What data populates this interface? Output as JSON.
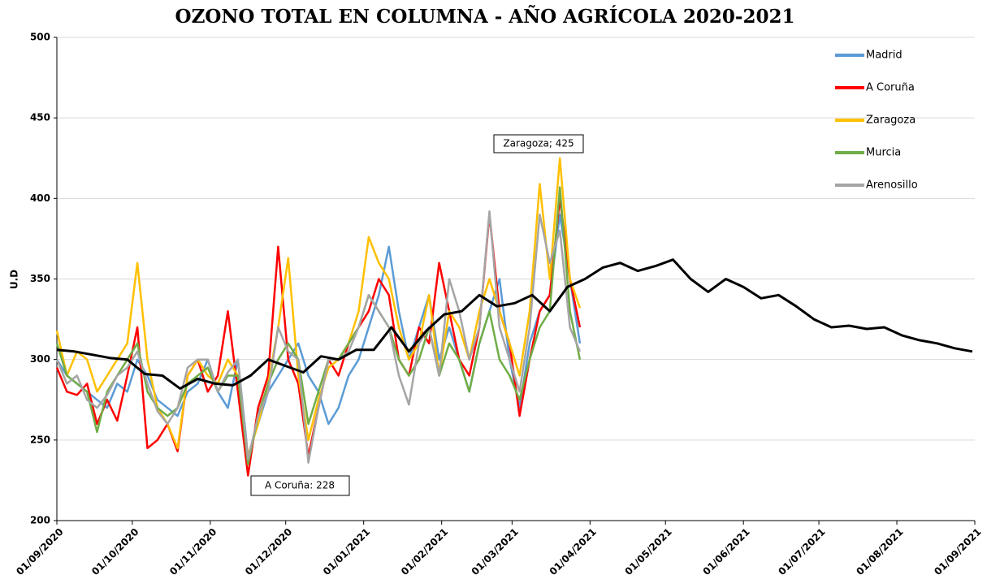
{
  "chart_data": {
    "type": "line",
    "title": "OZONO TOTAL EN COLUMNA - AÑO AGRÍCOLA 2020-2021",
    "y_label": "U.D",
    "ylim": [
      200,
      500
    ],
    "yticks": [
      200,
      250,
      300,
      350,
      400,
      450,
      500
    ],
    "grid": true,
    "xlim": [
      "01/09/2020",
      "01/09/2021"
    ],
    "xticks": [
      "01/09/2020",
      "01/10/2020",
      "01/11/2020",
      "01/12/2020",
      "01/01/2021",
      "01/02/2021",
      "01/03/2021",
      "01/04/2021",
      "01/05/2021",
      "01/06/2021",
      "01/07/2021",
      "01/08/2021",
      "01/09/2021"
    ],
    "legend": "top-right",
    "annotations": [
      "Zaragoza; 425",
      "A Coruña: 228"
    ],
    "x": [
      "01/09/2020",
      "05/09/2020",
      "09/09/2020",
      "13/09/2020",
      "17/09/2020",
      "21/09/2020",
      "25/09/2020",
      "29/09/2020",
      "03/10/2020",
      "07/10/2020",
      "11/10/2020",
      "15/10/2020",
      "19/10/2020",
      "23/10/2020",
      "27/10/2020",
      "31/10/2020",
      "04/11/2020",
      "08/11/2020",
      "12/11/2020",
      "16/11/2020",
      "20/11/2020",
      "24/11/2020",
      "28/11/2020",
      "02/12/2020",
      "06/12/2020",
      "10/12/2020",
      "14/12/2020",
      "18/12/2020",
      "22/12/2020",
      "26/12/2020",
      "30/12/2020",
      "03/01/2021",
      "07/01/2021",
      "11/01/2021",
      "15/01/2021",
      "19/01/2021",
      "23/01/2021",
      "27/01/2021",
      "31/01/2021",
      "04/02/2021",
      "08/02/2021",
      "12/02/2021",
      "16/02/2021",
      "20/02/2021",
      "24/02/2021",
      "28/02/2021",
      "04/03/2021",
      "08/03/2021",
      "12/03/2021",
      "16/03/2021",
      "20/03/2021",
      "24/03/2021",
      "28/03/2021"
    ],
    "series": [
      {
        "name": "Madrid",
        "color": "#5b9bd5",
        "values": [
          300,
          290,
          285,
          280,
          275,
          270,
          285,
          280,
          300,
          290,
          275,
          270,
          265,
          280,
          285,
          300,
          280,
          270,
          300,
          240,
          260,
          280,
          290,
          300,
          310,
          290,
          280,
          260,
          270,
          290,
          300,
          320,
          340,
          370,
          330,
          300,
          320,
          340,
          300,
          320,
          300,
          280,
          310,
          330,
          350,
          300,
          270,
          310,
          330,
          340,
          390,
          350,
          310
        ]
      },
      {
        "name": "A Coruña",
        "color": "#ff0000",
        "values": [
          295,
          280,
          278,
          285,
          260,
          275,
          262,
          290,
          320,
          245,
          250,
          260,
          243,
          290,
          300,
          280,
          290,
          330,
          280,
          228,
          270,
          290,
          370,
          300,
          285,
          240,
          270,
          300,
          290,
          310,
          320,
          330,
          350,
          340,
          300,
          290,
          320,
          310,
          360,
          330,
          300,
          290,
          320,
          390,
          330,
          310,
          265,
          300,
          330,
          340,
          400,
          350,
          320
        ]
      },
      {
        "name": "Zaragoza",
        "color": "#ffc000",
        "values": [
          318,
          290,
          305,
          300,
          280,
          290,
          300,
          310,
          360,
          300,
          270,
          260,
          245,
          290,
          300,
          290,
          285,
          300,
          290,
          240,
          260,
          285,
          320,
          363,
          290,
          250,
          275,
          295,
          300,
          310,
          330,
          376,
          360,
          350,
          320,
          300,
          310,
          340,
          290,
          330,
          320,
          300,
          330,
          350,
          330,
          310,
          290,
          330,
          409,
          350,
          425,
          350,
          332
        ]
      },
      {
        "name": "Murcia",
        "color": "#70ad47",
        "values": [
          310,
          290,
          285,
          280,
          255,
          280,
          290,
          300,
          310,
          280,
          270,
          265,
          270,
          285,
          290,
          295,
          280,
          290,
          290,
          235,
          265,
          285,
          300,
          310,
          300,
          260,
          280,
          300,
          300,
          310,
          320,
          340,
          330,
          320,
          300,
          290,
          300,
          320,
          290,
          310,
          300,
          280,
          310,
          330,
          300,
          290,
          275,
          300,
          320,
          330,
          407,
          330,
          300
        ]
      },
      {
        "name": "Arenosillo",
        "color": "#a5a5a5",
        "values": [
          300,
          285,
          290,
          275,
          270,
          278,
          290,
          295,
          305,
          285,
          268,
          260,
          270,
          295,
          300,
          300,
          280,
          292,
          300,
          238,
          265,
          280,
          320,
          305,
          300,
          236,
          270,
          300,
          300,
          305,
          320,
          340,
          330,
          320,
          290,
          272,
          310,
          320,
          290,
          350,
          330,
          300,
          320,
          392,
          320,
          300,
          280,
          320,
          390,
          360,
          380,
          320,
          305
        ]
      },
      {
        "color": "#000000",
        "x": [
          "01/09/2020",
          "08/09/2020",
          "15/09/2020",
          "22/09/2020",
          "29/09/2020",
          "06/10/2020",
          "13/10/2020",
          "20/10/2020",
          "27/10/2020",
          "03/11/2020",
          "10/11/2020",
          "17/11/2020",
          "24/11/2020",
          "01/12/2020",
          "08/12/2020",
          "15/12/2020",
          "22/12/2020",
          "29/12/2020",
          "05/01/2021",
          "12/01/2021",
          "19/01/2021",
          "26/01/2021",
          "02/02/2021",
          "09/02/2021",
          "16/02/2021",
          "23/02/2021",
          "02/03/2021",
          "09/03/2021",
          "16/03/2021",
          "23/03/2021",
          "30/03/2021",
          "06/04/2021",
          "13/04/2021",
          "20/04/2021",
          "27/04/2021",
          "04/05/2021",
          "11/05/2021",
          "18/05/2021",
          "25/05/2021",
          "01/06/2021",
          "08/06/2021",
          "15/06/2021",
          "22/06/2021",
          "29/06/2021",
          "06/07/2021",
          "13/07/2021",
          "20/07/2021",
          "27/07/2021",
          "03/08/2021",
          "10/08/2021",
          "17/08/2021",
          "24/08/2021",
          "31/08/2021"
        ],
        "values": [
          306,
          305,
          303,
          301,
          300,
          291,
          290,
          282,
          288,
          285,
          284,
          290,
          300,
          296,
          292,
          302,
          300,
          306,
          306,
          320,
          305,
          318,
          328,
          330,
          340,
          333,
          335,
          340,
          330,
          345,
          350,
          357,
          360,
          355,
          358,
          362,
          350,
          342,
          350,
          345,
          338,
          340,
          333,
          325,
          320,
          321,
          319,
          320,
          315,
          312,
          310,
          307,
          305
        ]
      }
    ]
  }
}
